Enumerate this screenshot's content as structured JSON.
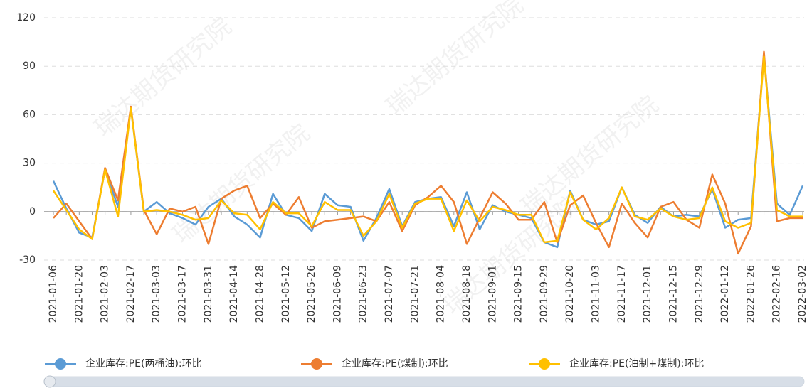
{
  "chart_data": {
    "type": "line",
    "watermark": "瑞达期货研究院",
    "categories": [
      "2021-01-06",
      null,
      "2021-01-20",
      null,
      "2021-02-03",
      null,
      "2021-02-17",
      null,
      "2021-03-03",
      null,
      "2021-03-17",
      null,
      "2021-03-31",
      null,
      "2021-04-14",
      null,
      "2021-04-28",
      null,
      "2021-05-12",
      null,
      "2021-05-26",
      null,
      "2021-06-09",
      null,
      "2021-06-23",
      null,
      "2021-07-07",
      null,
      "2021-07-21",
      null,
      "2021-08-04",
      null,
      "2021-08-18",
      null,
      "2021-09-01",
      null,
      "2021-09-15",
      null,
      "2021-09-29",
      null,
      "2021-10-20",
      null,
      "2021-11-03",
      null,
      "2021-11-17",
      null,
      "2021-12-01",
      null,
      "2021-12-15",
      null,
      "2021-12-29",
      null,
      "2022-01-12",
      null,
      "2022-01-26",
      null,
      "2022-02-16",
      null,
      "2022-03-02"
    ],
    "series": [
      {
        "name": "企业库存:PE(两桶油):环比",
        "color": "#5b9bd5",
        "values": [
          19,
          2,
          -13,
          -16,
          26,
          3,
          64,
          0,
          6,
          -1,
          -4,
          -8,
          3,
          8,
          -3,
          -8,
          -16,
          11,
          -2,
          -4,
          -12,
          11,
          4,
          3,
          -18,
          -4,
          14,
          -9,
          6,
          8,
          9,
          -9,
          12,
          -11,
          4,
          0,
          -2,
          -4,
          -19,
          -22,
          13,
          -5,
          -8,
          -6,
          15,
          -2,
          -7,
          3,
          -3,
          -2,
          -3,
          14,
          -10,
          -5,
          -4,
          97,
          5,
          -2,
          16
        ]
      },
      {
        "name": "企业库存:PE(煤制):环比",
        "color": "#ed7d31",
        "values": [
          -4,
          5,
          -6,
          -17,
          27,
          7,
          65,
          1,
          -14,
          2,
          0,
          3,
          -20,
          8,
          13,
          16,
          -4,
          5,
          -2,
          9,
          -10,
          -6,
          -5,
          -4,
          -3,
          -6,
          6,
          -12,
          4,
          9,
          16,
          6,
          -20,
          -4,
          12,
          5,
          -5,
          -5,
          6,
          -19,
          4,
          10,
          -7,
          -22,
          5,
          -7,
          -16,
          3,
          6,
          -5,
          -10,
          23,
          5,
          -26,
          -9,
          99,
          -6,
          -4,
          -4
        ]
      },
      {
        "name": "企业库存:PE(油制+煤制):环比",
        "color": "#ffc000",
        "values": [
          13,
          1,
          -11,
          -17,
          26,
          -3,
          64,
          0,
          1,
          0,
          -2,
          -5,
          -4,
          7,
          -1,
          -2,
          -11,
          6,
          -1,
          -1,
          -9,
          6,
          1,
          1,
          -15,
          -6,
          11,
          -10,
          5,
          8,
          8,
          -12,
          7,
          -6,
          3,
          1,
          -2,
          -2,
          -19,
          -18,
          12,
          -5,
          -11,
          -4,
          15,
          -3,
          -5,
          2,
          -3,
          -5,
          -4,
          15,
          -6,
          -10,
          -7,
          96,
          1,
          -3,
          -3
        ]
      }
    ],
    "ylim": [
      -30,
      120
    ],
    "yticks": [
      -30,
      0,
      30,
      60,
      90,
      120
    ],
    "grid": true,
    "legend": "bottom"
  }
}
